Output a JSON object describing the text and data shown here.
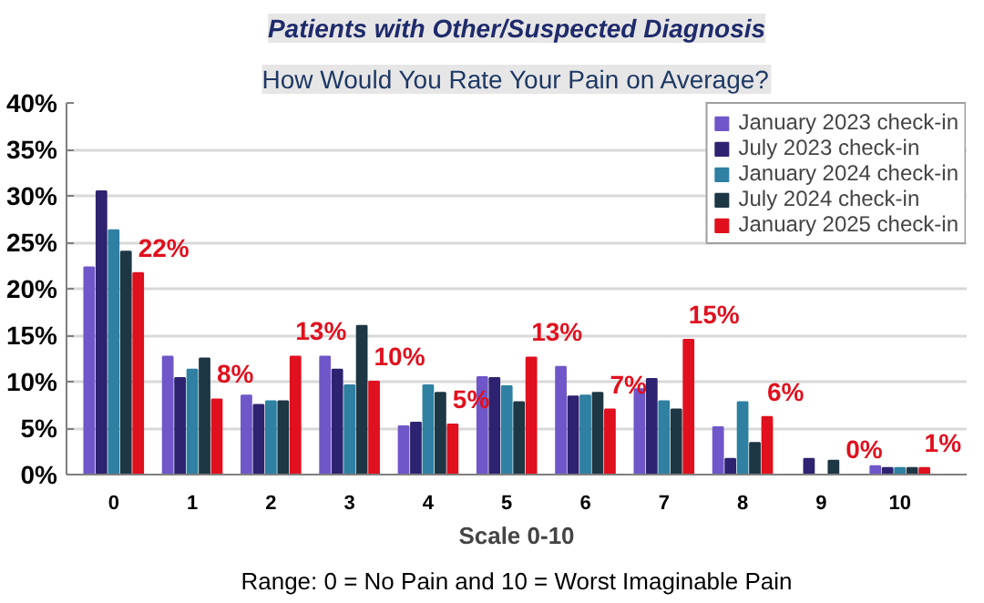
{
  "chart_data": {
    "type": "bar",
    "title": "Patients with Other/Suspected Diagnosis",
    "subtitle": "How Would You Rate Your Pain on Average?",
    "xlabel": "Scale 0-10",
    "annotations": [
      "Range: 0 = No Pain and 10 = Worst Imaginable Pain"
    ],
    "categories": [
      "0",
      "1",
      "2",
      "3",
      "4",
      "5",
      "6",
      "7",
      "8",
      "9",
      "10"
    ],
    "series": [
      {
        "name": "January 2023 check-in",
        "color": "#6f57c9",
        "values": [
          22.3,
          12.7,
          8.5,
          12.7,
          5.2,
          10.5,
          11.6,
          9.2,
          5.1,
          0,
          0.9
        ]
      },
      {
        "name": "July 2023 check-in",
        "color": "#2d2370",
        "values": [
          30.5,
          10.4,
          7.5,
          11.3,
          5.6,
          10.4,
          8.4,
          10.3,
          1.7,
          1.7,
          0.7
        ]
      },
      {
        "name": "January 2024 check-in",
        "color": "#2f80a2",
        "values": [
          26.3,
          11.3,
          7.9,
          9.6,
          9.6,
          9.5,
          8.5,
          7.9,
          7.8,
          0,
          0.7
        ]
      },
      {
        "name": "July 2024 check-in",
        "color": "#1e3745",
        "values": [
          24.0,
          12.5,
          7.9,
          16.0,
          8.8,
          7.8,
          8.8,
          7.0,
          3.4,
          1.5,
          0.7
        ]
      },
      {
        "name": "January 2025 check-in",
        "color": "#e0101e",
        "values": [
          21.7,
          8.1,
          12.7,
          10.0,
          5.4,
          12.6,
          7.0,
          14.5,
          6.2,
          0,
          0.7
        ],
        "value_labels": [
          "22%",
          "8%",
          "13%",
          "10%",
          "5%",
          "13%",
          "7%",
          "15%",
          "6%",
          "0%",
          "1%"
        ]
      }
    ],
    "ylim": [
      0,
      40
    ],
    "yticks": [
      {
        "value": 0,
        "label": "0%"
      },
      {
        "value": 5,
        "label": "5%"
      },
      {
        "value": 10,
        "label": "10%"
      },
      {
        "value": 15,
        "label": "15%"
      },
      {
        "value": 20,
        "label": "20%"
      },
      {
        "value": 25,
        "label": "25%"
      },
      {
        "value": 30,
        "label": "30%"
      },
      {
        "value": 35,
        "label": "35%"
      },
      {
        "value": 40,
        "label": "40%"
      }
    ],
    "grid": "y",
    "legend": "top right"
  }
}
